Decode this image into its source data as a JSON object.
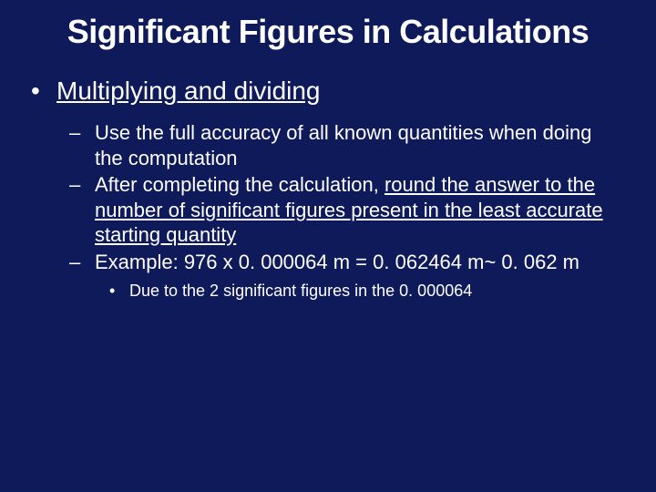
{
  "colors": {
    "background": "#0e1a5a",
    "text": "#ffffff"
  },
  "title": "Significant Figures in Calculations",
  "main_bullet": {
    "marker": "•",
    "text": "Multiplying and dividing",
    "underline": true
  },
  "sub_bullets": [
    {
      "marker": "–",
      "segments": [
        {
          "text": "Use the full accuracy of all known quantities when doing the computation",
          "underline": false
        }
      ]
    },
    {
      "marker": "–",
      "segments": [
        {
          "text": "After completing the calculation, ",
          "underline": false
        },
        {
          "text": "round the answer to the number of significant figures present in the least accurate starting quantity",
          "underline": true
        }
      ]
    },
    {
      "marker": "–",
      "segments": [
        {
          "text": "Example:  976 x 0. 000064  m = 0. 062464  m~ 0. 062 m",
          "underline": false
        }
      ]
    }
  ],
  "subsub_bullet": {
    "marker": "•",
    "text": "Due to the 2 significant figures in the 0. 000064"
  },
  "typography": {
    "title_fontsize": 36,
    "main_fontsize": 28,
    "sub_fontsize": 22,
    "subsub_fontsize": 18,
    "font_family": "Arial"
  }
}
